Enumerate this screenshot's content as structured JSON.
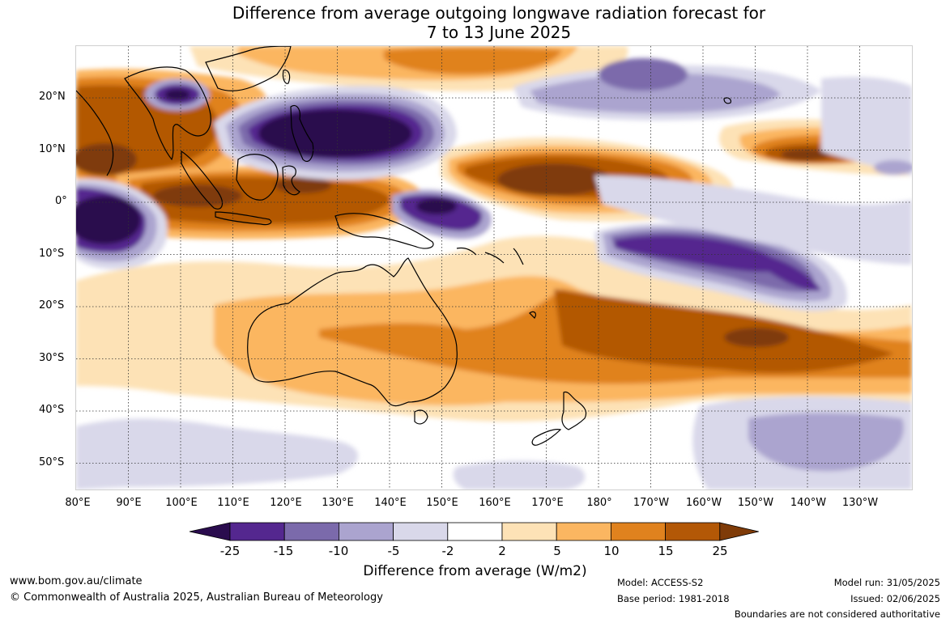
{
  "title_line1": "Difference from average outgoing longwave radiation forecast for",
  "title_line2": "7 to 13 June 2025",
  "lat_labels": [
    "20°N",
    "10°N",
    "0°",
    "10°S",
    "20°S",
    "30°S",
    "40°S",
    "50°S"
  ],
  "lon_labels": [
    "80°E",
    "90°E",
    "100°E",
    "110°E",
    "120°E",
    "130°E",
    "140°E",
    "150°E",
    "160°E",
    "170°E",
    "180°",
    "170°W",
    "160°W",
    "150°W",
    "140°W",
    "130°W"
  ],
  "colorbar": {
    "ticks": [
      "-25",
      "-15",
      "-10",
      "-5",
      "-2",
      "2",
      "5",
      "10",
      "15",
      "25"
    ],
    "colors": [
      "#2a0c4e",
      "#54278f",
      "#7b6aab",
      "#aba4cf",
      "#d9d8ea",
      "#ffffff",
      "#fde2b6",
      "#fbb661",
      "#e0821e",
      "#b35806",
      "#7f3b08"
    ],
    "title": "Difference from average (W/m2)"
  },
  "footer": {
    "url": "www.bom.gov.au/climate",
    "copyright": "© Commonwealth of Australia 2025, Australian Bureau of Meteorology",
    "model": "Model: ACCESS-S2",
    "base_period": "Base period: 1981-2018",
    "model_run": "Model run: 31/05/2025",
    "issued": "Issued: 02/06/2025",
    "boundaries": "Boundaries are not considered authoritative"
  }
}
